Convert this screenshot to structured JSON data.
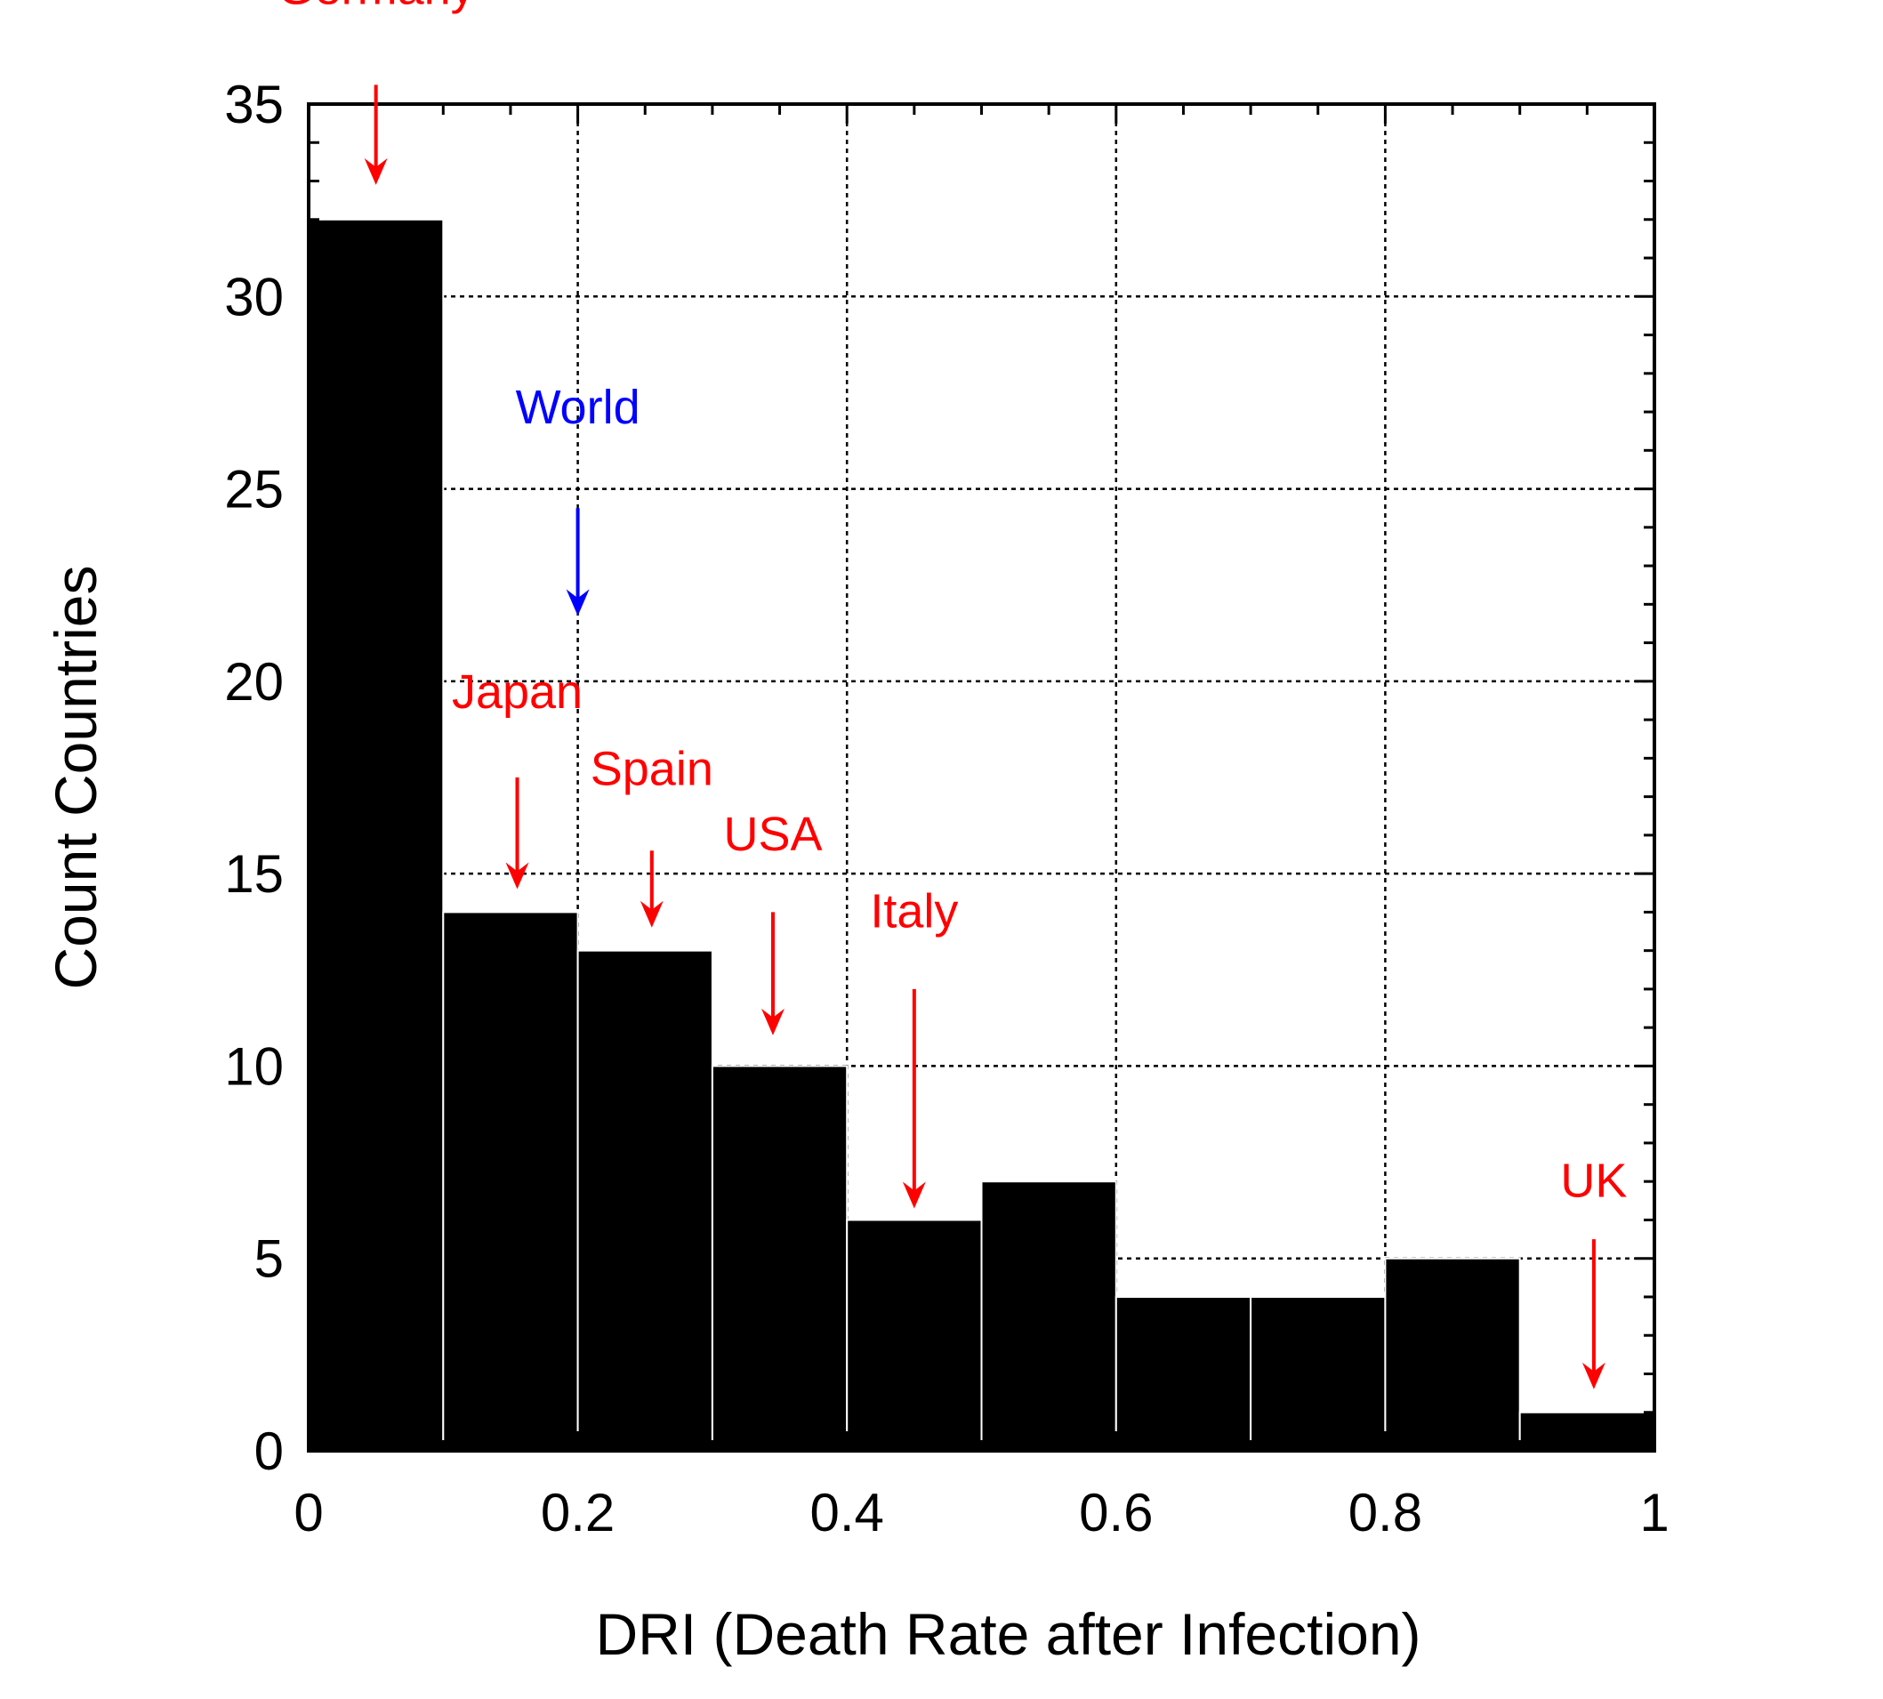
{
  "chart_data": {
    "type": "bar",
    "histogram": true,
    "bin_edges": [
      0,
      0.1,
      0.2,
      0.3,
      0.4,
      0.5,
      0.6,
      0.7,
      0.8,
      0.9,
      1.0
    ],
    "values": [
      32,
      14,
      13,
      10,
      6,
      7,
      4,
      4,
      5,
      1
    ],
    "xlabel": "DRI (Death Rate after Infection)",
    "ylabel": "Count Countries",
    "xlim": [
      0,
      1
    ],
    "ylim": [
      0,
      35
    ],
    "xticks": [
      0,
      0.2,
      0.4,
      0.6,
      0.8,
      1
    ],
    "xtick_labels": [
      "0",
      "0.2",
      "0.4",
      "0.6",
      "0.8",
      "1"
    ],
    "yticks": [
      0,
      5,
      10,
      15,
      20,
      25,
      30,
      35
    ],
    "ytick_labels": [
      "0",
      "5",
      "10",
      "15",
      "20",
      "25",
      "30",
      "35"
    ],
    "grid": "dotted",
    "bar_color": "#000000",
    "annotations": [
      {
        "label": "Germany",
        "x": 0.05,
        "label_y": 37.6,
        "arrow_from": 35.5,
        "arrow_to": 32.9,
        "color": "#ff0000"
      },
      {
        "label": "World",
        "x": 0.2,
        "label_y": 26.7,
        "arrow_from": 24.5,
        "arrow_to": 21.7,
        "color": "#0000ff"
      },
      {
        "label": "Japan",
        "x": 0.155,
        "label_y": 19.3,
        "arrow_from": 17.5,
        "arrow_to": 14.6,
        "color": "#ff0000"
      },
      {
        "label": "Spain",
        "x": 0.255,
        "label_y": 17.3,
        "arrow_from": 15.6,
        "arrow_to": 13.6,
        "color": "#ff0000"
      },
      {
        "label": "USA",
        "x": 0.345,
        "label_y": 15.6,
        "arrow_from": 14.0,
        "arrow_to": 10.8,
        "color": "#ff0000"
      },
      {
        "label": "Italy",
        "x": 0.45,
        "label_y": 13.6,
        "arrow_from": 12.0,
        "arrow_to": 6.3,
        "color": "#ff0000"
      },
      {
        "label": "UK",
        "x": 0.955,
        "label_y": 6.6,
        "arrow_from": 5.5,
        "arrow_to": 1.6,
        "color": "#ff0000"
      }
    ]
  }
}
